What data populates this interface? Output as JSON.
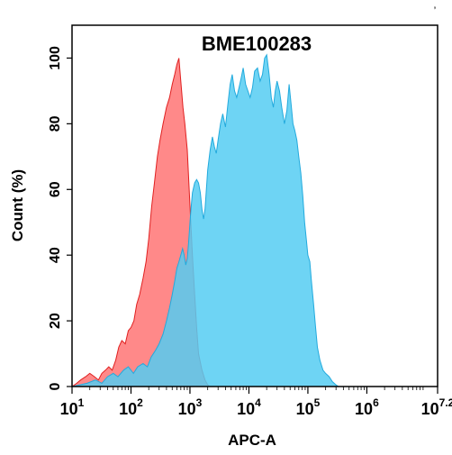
{
  "corner_mark": "’",
  "chart_data": {
    "type": "area",
    "title": "BME100283",
    "xlabel": "APC-A",
    "ylabel": "Count  (%)",
    "xscale": "log",
    "xlim": [
      10,
      15848932
    ],
    "ylim": [
      0,
      110
    ],
    "xticks": [
      {
        "value": 10,
        "base": "10",
        "exp": "1"
      },
      {
        "value": 100,
        "base": "10",
        "exp": "2"
      },
      {
        "value": 1000,
        "base": "10",
        "exp": "3"
      },
      {
        "value": 10000,
        "base": "10",
        "exp": "4"
      },
      {
        "value": 100000,
        "base": "10",
        "exp": "5"
      },
      {
        "value": 1000000,
        "base": "10",
        "exp": "6"
      },
      {
        "value": 15848932,
        "base": "10",
        "exp": "7.2"
      }
    ],
    "yticks": [
      {
        "value": 0,
        "label": "0"
      },
      {
        "value": 20,
        "label": "20"
      },
      {
        "value": 40,
        "label": "40"
      },
      {
        "value": 60,
        "label": "60"
      },
      {
        "value": 80,
        "label": "80"
      },
      {
        "value": 100,
        "label": "100"
      }
    ],
    "series": [
      {
        "fill": "#ff6b6b",
        "stroke": "#e02020",
        "opacity": 0.8,
        "points": [
          [
            10,
            0
          ],
          [
            12,
            1
          ],
          [
            14,
            2
          ],
          [
            17,
            3
          ],
          [
            20,
            4
          ],
          [
            24,
            3
          ],
          [
            28,
            2
          ],
          [
            32,
            4
          ],
          [
            37,
            5
          ],
          [
            42,
            6
          ],
          [
            48,
            5
          ],
          [
            55,
            8
          ],
          [
            62,
            12
          ],
          [
            70,
            14
          ],
          [
            80,
            13
          ],
          [
            90,
            17
          ],
          [
            100,
            18
          ],
          [
            112,
            20
          ],
          [
            125,
            25
          ],
          [
            140,
            28
          ],
          [
            160,
            33
          ],
          [
            180,
            38
          ],
          [
            200,
            45
          ],
          [
            225,
            55
          ],
          [
            250,
            62
          ],
          [
            280,
            70
          ],
          [
            310,
            75
          ],
          [
            350,
            80
          ],
          [
            400,
            85
          ],
          [
            450,
            88
          ],
          [
            500,
            92
          ],
          [
            550,
            95
          ],
          [
            600,
            98
          ],
          [
            650,
            100
          ],
          [
            700,
            93
          ],
          [
            760,
            85
          ],
          [
            820,
            80
          ],
          [
            900,
            72
          ],
          [
            1000,
            55
          ],
          [
            1100,
            40
          ],
          [
            1200,
            28
          ],
          [
            1300,
            18
          ],
          [
            1400,
            10
          ],
          [
            1600,
            5
          ],
          [
            1800,
            2
          ],
          [
            2000,
            0.5
          ],
          [
            2200,
            0
          ]
        ]
      },
      {
        "fill": "#55ccf2",
        "stroke": "#22aadd",
        "opacity": 0.85,
        "points": [
          [
            10,
            0
          ],
          [
            18,
            1
          ],
          [
            25,
            2
          ],
          [
            32,
            1
          ],
          [
            40,
            3
          ],
          [
            50,
            4
          ],
          [
            60,
            3
          ],
          [
            75,
            5
          ],
          [
            90,
            6
          ],
          [
            110,
            4
          ],
          [
            130,
            6
          ],
          [
            160,
            7
          ],
          [
            190,
            6
          ],
          [
            220,
            9
          ],
          [
            260,
            11
          ],
          [
            300,
            13
          ],
          [
            350,
            16
          ],
          [
            400,
            20
          ],
          [
            450,
            24
          ],
          [
            500,
            28
          ],
          [
            550,
            32
          ],
          [
            600,
            36
          ],
          [
            650,
            38
          ],
          [
            700,
            40
          ],
          [
            750,
            42
          ],
          [
            800,
            40
          ],
          [
            850,
            37
          ],
          [
            900,
            39
          ],
          [
            950,
            44
          ],
          [
            1000,
            50
          ],
          [
            1050,
            55
          ],
          [
            1100,
            59
          ],
          [
            1200,
            62
          ],
          [
            1300,
            63
          ],
          [
            1400,
            62
          ],
          [
            1500,
            59
          ],
          [
            1600,
            54
          ],
          [
            1700,
            51
          ],
          [
            1800,
            54
          ],
          [
            1900,
            60
          ],
          [
            2000,
            66
          ],
          [
            2200,
            72
          ],
          [
            2400,
            76
          ],
          [
            2600,
            73
          ],
          [
            2800,
            71
          ],
          [
            3000,
            75
          ],
          [
            3300,
            80
          ],
          [
            3600,
            83
          ],
          [
            4000,
            79
          ],
          [
            4400,
            86
          ],
          [
            4800,
            92
          ],
          [
            5200,
            95
          ],
          [
            5700,
            90
          ],
          [
            6200,
            88
          ],
          [
            6800,
            91
          ],
          [
            7400,
            94
          ],
          [
            8000,
            97
          ],
          [
            8800,
            92
          ],
          [
            9600,
            90
          ],
          [
            10500,
            88
          ],
          [
            11500,
            91
          ],
          [
            12500,
            96
          ],
          [
            14000,
            97
          ],
          [
            15500,
            93
          ],
          [
            17000,
            95
          ],
          [
            18500,
            100
          ],
          [
            20000,
            101
          ],
          [
            22000,
            95
          ],
          [
            24000,
            88
          ],
          [
            26000,
            85
          ],
          [
            28000,
            90
          ],
          [
            30000,
            93
          ],
          [
            33000,
            90
          ],
          [
            36000,
            85
          ],
          [
            40000,
            80
          ],
          [
            44000,
            84
          ],
          [
            48000,
            92
          ],
          [
            52000,
            86
          ],
          [
            56000,
            80
          ],
          [
            60000,
            78
          ],
          [
            65000,
            75
          ],
          [
            70000,
            70
          ],
          [
            76000,
            65
          ],
          [
            82000,
            58
          ],
          [
            88000,
            50
          ],
          [
            95000,
            44
          ],
          [
            100000,
            40
          ],
          [
            108000,
            38
          ],
          [
            115000,
            32
          ],
          [
            125000,
            25
          ],
          [
            135000,
            18
          ],
          [
            145000,
            12
          ],
          [
            160000,
            8
          ],
          [
            180000,
            5
          ],
          [
            200000,
            4
          ],
          [
            230000,
            3
          ],
          [
            260000,
            1.5
          ],
          [
            300000,
            0.5
          ],
          [
            330000,
            0
          ]
        ]
      }
    ]
  }
}
